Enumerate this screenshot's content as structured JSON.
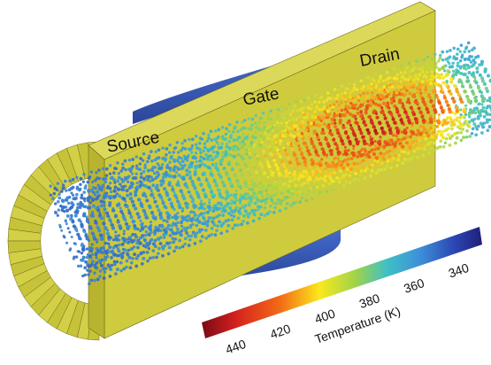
{
  "labels": {
    "source": "Source",
    "gate": "Gate",
    "drain": "Drain"
  },
  "colorbar": {
    "title": "Temperature (K)",
    "ticks": [
      "440",
      "420",
      "400",
      "380",
      "360",
      "340"
    ],
    "min": 330,
    "max": 450
  },
  "colors": {
    "metal": "#cfcb3e",
    "metal_top": "#dcd85a",
    "metal_side": "#b8b42f",
    "gate": "#3b5fc4",
    "gate_dark": "#2a4699"
  }
}
